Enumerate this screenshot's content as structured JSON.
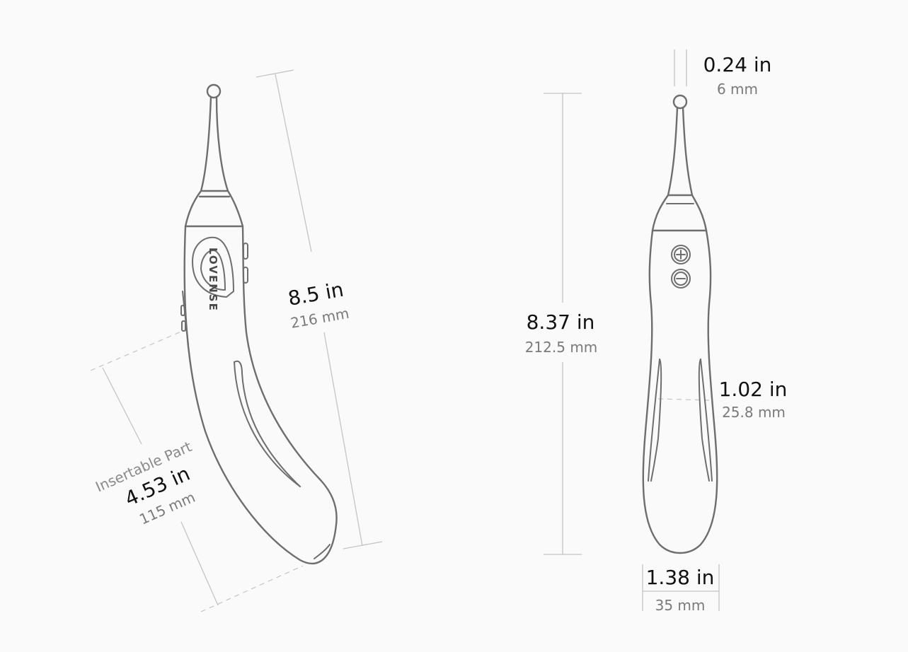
{
  "colors": {
    "background": "#fafafa",
    "outline": "#6e6e6e",
    "dimension_line": "#c4c4c4",
    "primary_text": "#111111",
    "secondary_text": "#7a7a7a"
  },
  "side_view": {
    "length": {
      "imperial": "8.5 in",
      "metric": "216 mm"
    },
    "insertable": {
      "label": "Insertable Part",
      "imperial": "4.53 in",
      "metric": "115 mm"
    },
    "brand_logo_text": "LOVENSE"
  },
  "front_view": {
    "length": {
      "imperial": "8.37 in",
      "metric": "212.5 mm"
    },
    "tip": {
      "imperial": "0.24 in",
      "metric": "6 mm"
    },
    "width_mid": {
      "imperial": "1.02 in",
      "metric": "25.8 mm"
    },
    "width_base": {
      "imperial": "1.38 in",
      "metric": "35 mm"
    },
    "button_icons": [
      "plus-icon",
      "minus-icon"
    ]
  }
}
